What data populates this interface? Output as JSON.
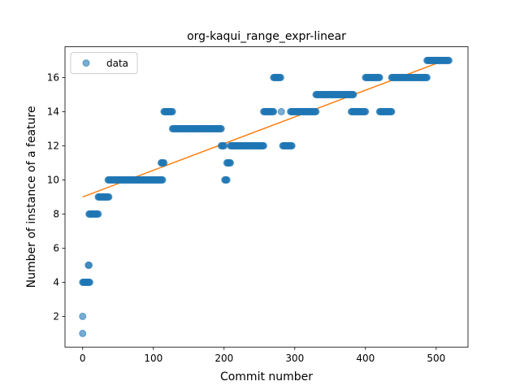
{
  "chart_data": {
    "type": "scatter",
    "title": "org-kaqui_range_expr-linear",
    "xlabel": "Commit number",
    "ylabel": "Number of instance of a feature",
    "xlim": [
      -25,
      545
    ],
    "ylim": [
      0.2,
      17.8
    ],
    "xticks": [
      0,
      100,
      200,
      300,
      400,
      500
    ],
    "yticks": [
      2,
      4,
      6,
      8,
      10,
      12,
      14,
      16
    ],
    "grid": false,
    "legend": {
      "position": "top-left",
      "entries": [
        "data"
      ]
    },
    "colors": {
      "data": "#1f77b4",
      "fit": "#ff7f0e"
    },
    "series": [
      {
        "name": "data",
        "style": "markers",
        "segments": [
          {
            "x0": 0,
            "x1": 0,
            "y": 1
          },
          {
            "x0": 0,
            "x1": 0,
            "y": 2
          },
          {
            "x0": 0,
            "x1": 10,
            "y": 4
          },
          {
            "x0": 8,
            "x1": 9,
            "y": 5
          },
          {
            "x0": 9,
            "x1": 22,
            "y": 8
          },
          {
            "x0": 22,
            "x1": 37,
            "y": 9
          },
          {
            "x0": 36,
            "x1": 113,
            "y": 10
          },
          {
            "x0": 111,
            "x1": 115,
            "y": 11
          },
          {
            "x0": 115,
            "x1": 127,
            "y": 14
          },
          {
            "x0": 127,
            "x1": 196,
            "y": 13
          },
          {
            "x0": 196,
            "x1": 200,
            "y": 12
          },
          {
            "x0": 201,
            "x1": 204,
            "y": 10
          },
          {
            "x0": 204,
            "x1": 209,
            "y": 11
          },
          {
            "x0": 209,
            "x1": 256,
            "y": 12
          },
          {
            "x0": 256,
            "x1": 270,
            "y": 14
          },
          {
            "x0": 270,
            "x1": 280,
            "y": 16
          },
          {
            "x0": 281,
            "x1": 281,
            "y": 14
          },
          {
            "x0": 283,
            "x1": 296,
            "y": 12
          },
          {
            "x0": 294,
            "x1": 330,
            "y": 14
          },
          {
            "x0": 330,
            "x1": 383,
            "y": 15
          },
          {
            "x0": 380,
            "x1": 400,
            "y": 14
          },
          {
            "x0": 400,
            "x1": 420,
            "y": 16
          },
          {
            "x0": 420,
            "x1": 437,
            "y": 14
          },
          {
            "x0": 437,
            "x1": 487,
            "y": 16
          },
          {
            "x0": 487,
            "x1": 518,
            "y": 17
          }
        ]
      },
      {
        "name": "",
        "style": "line",
        "x": [
          0,
          518
        ],
        "y": [
          9.0,
          17.1
        ]
      }
    ]
  }
}
